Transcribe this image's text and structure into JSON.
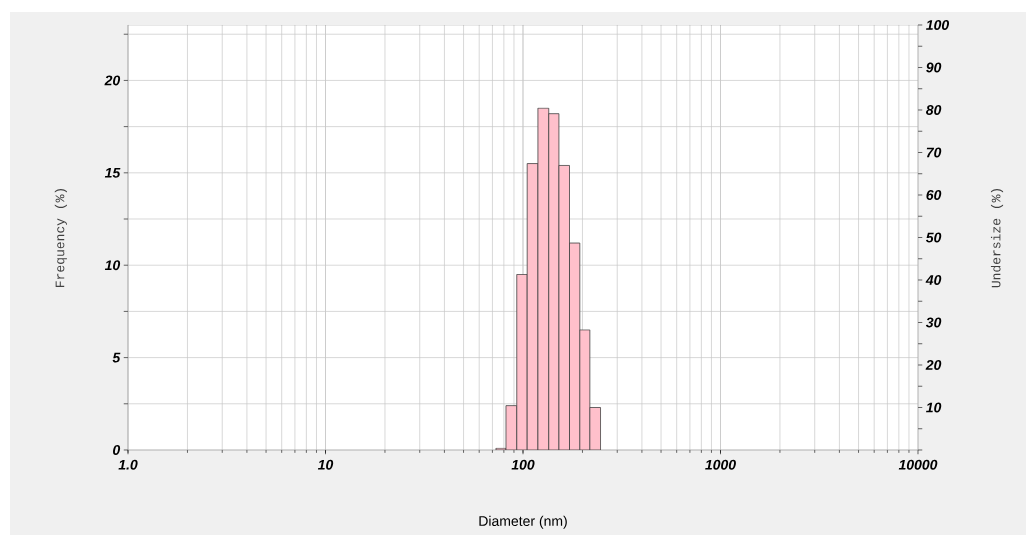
{
  "chart_data": {
    "type": "histogram",
    "xlabel": "Diameter (nm)",
    "ylabel": "Frequency (%)",
    "y2label": "Undersize (%)",
    "bins": [
      73,
      82,
      93,
      105,
      119,
      135,
      152,
      172,
      194,
      218,
      247
    ],
    "values": [
      0.1,
      2.4,
      9.5,
      15.5,
      18.5,
      18.2,
      15.4,
      11.2,
      6.5,
      2.3
    ],
    "color": "#ffc0cb",
    "log": "x",
    "xlim": [
      1,
      10000
    ],
    "xticks": [
      {
        "value": 1,
        "label": "1.0"
      },
      10,
      100,
      1000,
      10000
    ],
    "ylim": [
      0,
      23
    ],
    "yticks": [
      0,
      {
        "value": 2.5,
        "label": null
      },
      5,
      {
        "value": 7.5,
        "label": null
      },
      10,
      {
        "value": 12.5,
        "label": null
      },
      15,
      {
        "value": 17.5,
        "label": null
      },
      20,
      {
        "value": 22.5,
        "label": null
      }
    ],
    "y2lim": [
      0,
      100
    ],
    "y2ticks": [
      {
        "value": 0,
        "label": null
      },
      {
        "value": 5,
        "label": null
      },
      10,
      {
        "value": 15,
        "label": null
      },
      20,
      {
        "value": 25,
        "label": null
      },
      30,
      {
        "value": 35,
        "label": null
      },
      40,
      {
        "value": 45,
        "label": null
      },
      50,
      {
        "value": 55,
        "label": null
      },
      60,
      {
        "value": 65,
        "label": null
      },
      70,
      {
        "value": 75,
        "label": null
      },
      80,
      {
        "value": 85,
        "label": null
      },
      90,
      {
        "value": 95,
        "label": null
      },
      100
    ],
    "grid": true
  }
}
